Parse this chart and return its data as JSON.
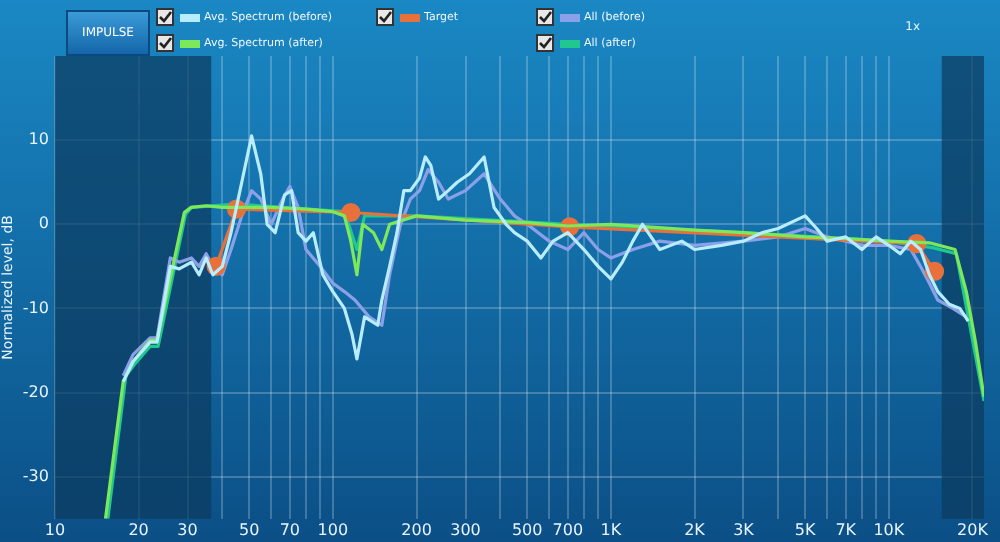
{
  "chart_data": {
    "type": "line",
    "ylabel": "Normalized level, dB",
    "annotations": [
      "IMPULSE",
      "1x"
    ],
    "legend": "top left",
    "grid": true,
    "log": "x",
    "xlim": [
      10,
      22000
    ],
    "ylim": [
      -35,
      20
    ],
    "xticks": [
      10,
      20,
      30,
      {
        "value": 40,
        "label": null
      },
      50,
      {
        "value": 60,
        "label": null
      },
      70,
      {
        "value": 80,
        "label": null
      },
      {
        "value": 90,
        "label": null
      },
      100,
      200,
      300,
      {
        "value": 400,
        "label": null
      },
      500,
      {
        "value": 600,
        "label": null
      },
      700,
      {
        "value": 800,
        "label": null
      },
      {
        "value": 900,
        "label": null
      },
      {
        "value": 1000,
        "label": "1K"
      },
      {
        "value": 2000,
        "label": "2K"
      },
      {
        "value": 3000,
        "label": "3K"
      },
      {
        "value": 4000,
        "label": null
      },
      {
        "value": 5000,
        "label": "5K"
      },
      {
        "value": 6000,
        "label": null
      },
      {
        "value": 7000,
        "label": "7K"
      },
      {
        "value": 8000,
        "label": null
      },
      {
        "value": 9000,
        "label": null
      },
      {
        "value": 10000,
        "label": "10K"
      },
      {
        "value": 20000,
        "label": "20K"
      }
    ],
    "yticks": [
      -30,
      -20,
      -10,
      0,
      10
    ],
    "bands": [
      {
        "axis": "x",
        "from": 10,
        "to": 36.5,
        "color": "#0b3a5e"
      },
      {
        "axis": "x",
        "from": 15500,
        "to": 22000,
        "color": "#0b3a5e"
      }
    ],
    "series": [
      {
        "name": "Avg. Spectrum (before)",
        "color": "#b8ecff",
        "marker": "none",
        "line_style": "solid",
        "x": [
          17.6,
          19.1,
          22,
          23.3,
          26,
          28,
          31,
          33,
          35,
          37,
          40,
          43,
          47,
          51,
          55,
          58,
          62,
          67,
          71,
          75,
          80,
          85,
          92,
          100,
          110,
          117,
          122,
          130,
          145,
          150,
          160,
          170,
          180,
          190,
          205,
          215,
          225,
          240,
          260,
          280,
          310,
          350,
          380,
          420,
          450,
          500,
          560,
          620,
          700,
          800,
          900,
          1000,
          1100,
          1200,
          1300,
          1500,
          1800,
          2000,
          2500,
          3000,
          3500,
          4000,
          5000,
          5500,
          6000,
          7000,
          8000,
          9000,
          10000,
          11000,
          12000,
          13000,
          14000,
          15000,
          16500,
          18000,
          19300
        ],
        "values": [
          -18.7,
          -16.3,
          -14,
          -14,
          -5,
          -5.3,
          -4.5,
          -6,
          -4,
          -6,
          -5,
          -1,
          5,
          10.5,
          6,
          0,
          -1,
          3.5,
          4,
          -1,
          -2,
          -1,
          -6,
          -8,
          -10,
          -13,
          -16,
          -11,
          -12,
          -9,
          -5,
          -1,
          4,
          4,
          5.5,
          8,
          7,
          3,
          4,
          5,
          6,
          8,
          2,
          0,
          -1,
          -2,
          -4,
          -2,
          -1,
          -3,
          -5,
          -6.5,
          -4.5,
          -2,
          0,
          -3,
          -2,
          -3,
          -2.5,
          -2,
          -1,
          -0.5,
          1,
          -0.5,
          -2,
          -1.5,
          -3,
          -1.5,
          -2.5,
          -3.5,
          -2,
          -3,
          -6,
          -8,
          -9.5,
          -10,
          -11.5
        ]
      },
      {
        "name": "Avg. Spectrum (after)",
        "color": "#7de85a",
        "marker": "none",
        "line_style": "solid",
        "x": [
          15.2,
          17.6,
          19.1,
          22,
          23.3,
          29.2,
          30.8,
          35,
          40,
          45,
          60,
          80,
          100,
          110,
          116,
          122,
          128,
          140,
          150,
          160,
          200,
          300,
          500,
          700,
          1000,
          2000,
          3000,
          5000,
          7000,
          10000,
          14000,
          17300,
          19000,
          20500,
          22000
        ],
        "values": [
          -35,
          -18.7,
          -16.3,
          -13.8,
          -13.8,
          1.4,
          2,
          2.2,
          2,
          2,
          2,
          1.8,
          1.5,
          1,
          -2,
          -6,
          0,
          -1,
          -3,
          0,
          1,
          0.5,
          0.2,
          -0.2,
          0,
          -0.7,
          -1,
          -1.5,
          -1.7,
          -2,
          -2.2,
          -3,
          -8,
          -14,
          -20.5
        ]
      },
      {
        "name": "Target",
        "color": "#e8703a",
        "marker": "circle",
        "line_style": "solid",
        "x": [
          38,
          45,
          116,
          711,
          12600,
          14600
        ],
        "values": [
          -5,
          1.8,
          1.4,
          -0.3,
          -2.3,
          -5.6
        ]
      },
      {
        "name": "All (before)",
        "color": "#8aa0e8",
        "marker": "none",
        "line_style": "solid",
        "x": [
          17.6,
          19.1,
          22,
          23.3,
          26,
          28,
          31,
          33,
          35,
          37,
          40,
          43,
          47,
          51,
          55,
          60,
          66,
          70,
          75,
          80,
          90,
          100,
          110,
          120,
          135,
          150,
          160,
          175,
          190,
          205,
          220,
          240,
          260,
          300,
          350,
          400,
          450,
          500,
          600,
          700,
          800,
          900,
          1000,
          1200,
          1500,
          2000,
          3000,
          4000,
          5000,
          6000,
          7000,
          8000,
          10000,
          12000,
          13000,
          14000,
          15000,
          17000,
          19000
        ],
        "values": [
          -18,
          -15.5,
          -13.5,
          -13.5,
          -4,
          -4.5,
          -4,
          -5,
          -3.5,
          -5,
          -6,
          -3,
          1,
          4,
          3,
          0,
          3,
          4.5,
          2,
          -3,
          -5,
          -7,
          -8,
          -9,
          -11,
          -12,
          -6,
          0,
          3,
          4,
          6.5,
          5,
          3,
          4,
          6,
          3,
          1,
          0,
          -2,
          -3,
          -1,
          -3,
          -4,
          -3,
          -2,
          -2.5,
          -2,
          -1.5,
          -0.5,
          -1.5,
          -2,
          -2.5,
          -2.5,
          -3,
          -5,
          -7,
          -9,
          -10,
          -11
        ]
      },
      {
        "name": "All (after)",
        "color": "#20c890",
        "marker": "none",
        "line_style": "solid",
        "x": [
          15.5,
          18,
          19.5,
          22,
          23.5,
          29.5,
          31,
          45,
          110,
          122,
          130,
          200,
          700,
          3000,
          10000,
          14500,
          17500,
          22000
        ],
        "values": [
          -35,
          -18,
          -16.5,
          -14.5,
          -14.5,
          1.2,
          2,
          2.4,
          1.5,
          -3,
          1,
          1,
          0,
          -1,
          -2,
          -2.8,
          -3.5,
          -21
        ]
      }
    ]
  }
}
